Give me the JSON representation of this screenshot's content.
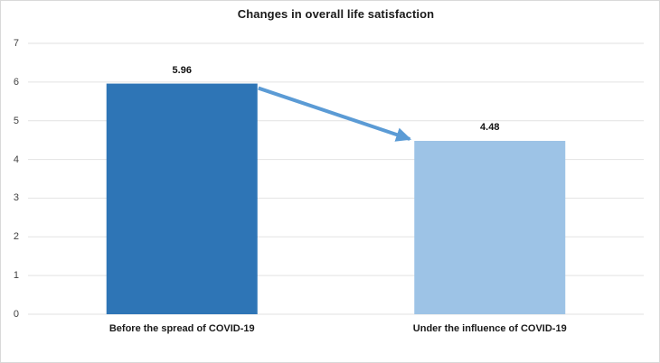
{
  "chart_data": {
    "type": "bar",
    "title": "Changes in overall life satisfaction",
    "categories": [
      "Before the spread of COVID-19",
      "Under the influence of COVID-19"
    ],
    "values": [
      5.96,
      4.48
    ],
    "value_labels": [
      "5.96",
      "4.48"
    ],
    "yticks": [
      0,
      1,
      2,
      3,
      4,
      5,
      6,
      7
    ],
    "ylim": [
      0,
      7
    ],
    "grid": true,
    "legend": false,
    "xlabel": "",
    "ylabel": "",
    "bar_colors": [
      "#2E75B6",
      "#9DC3E6"
    ],
    "annotation": {
      "type": "arrow",
      "from": {
        "category_index": 0,
        "value": 5.96
      },
      "to": {
        "category_index": 1,
        "value": 4.48
      },
      "color": "#5B9BD5"
    },
    "colors": {
      "background": "#FFFFFF",
      "border": "#D9D9D9",
      "gridline": "#E2E2E2",
      "tick_label": "#404040",
      "text": "#1A1A1A",
      "arrow": "#5B9BD5"
    }
  }
}
